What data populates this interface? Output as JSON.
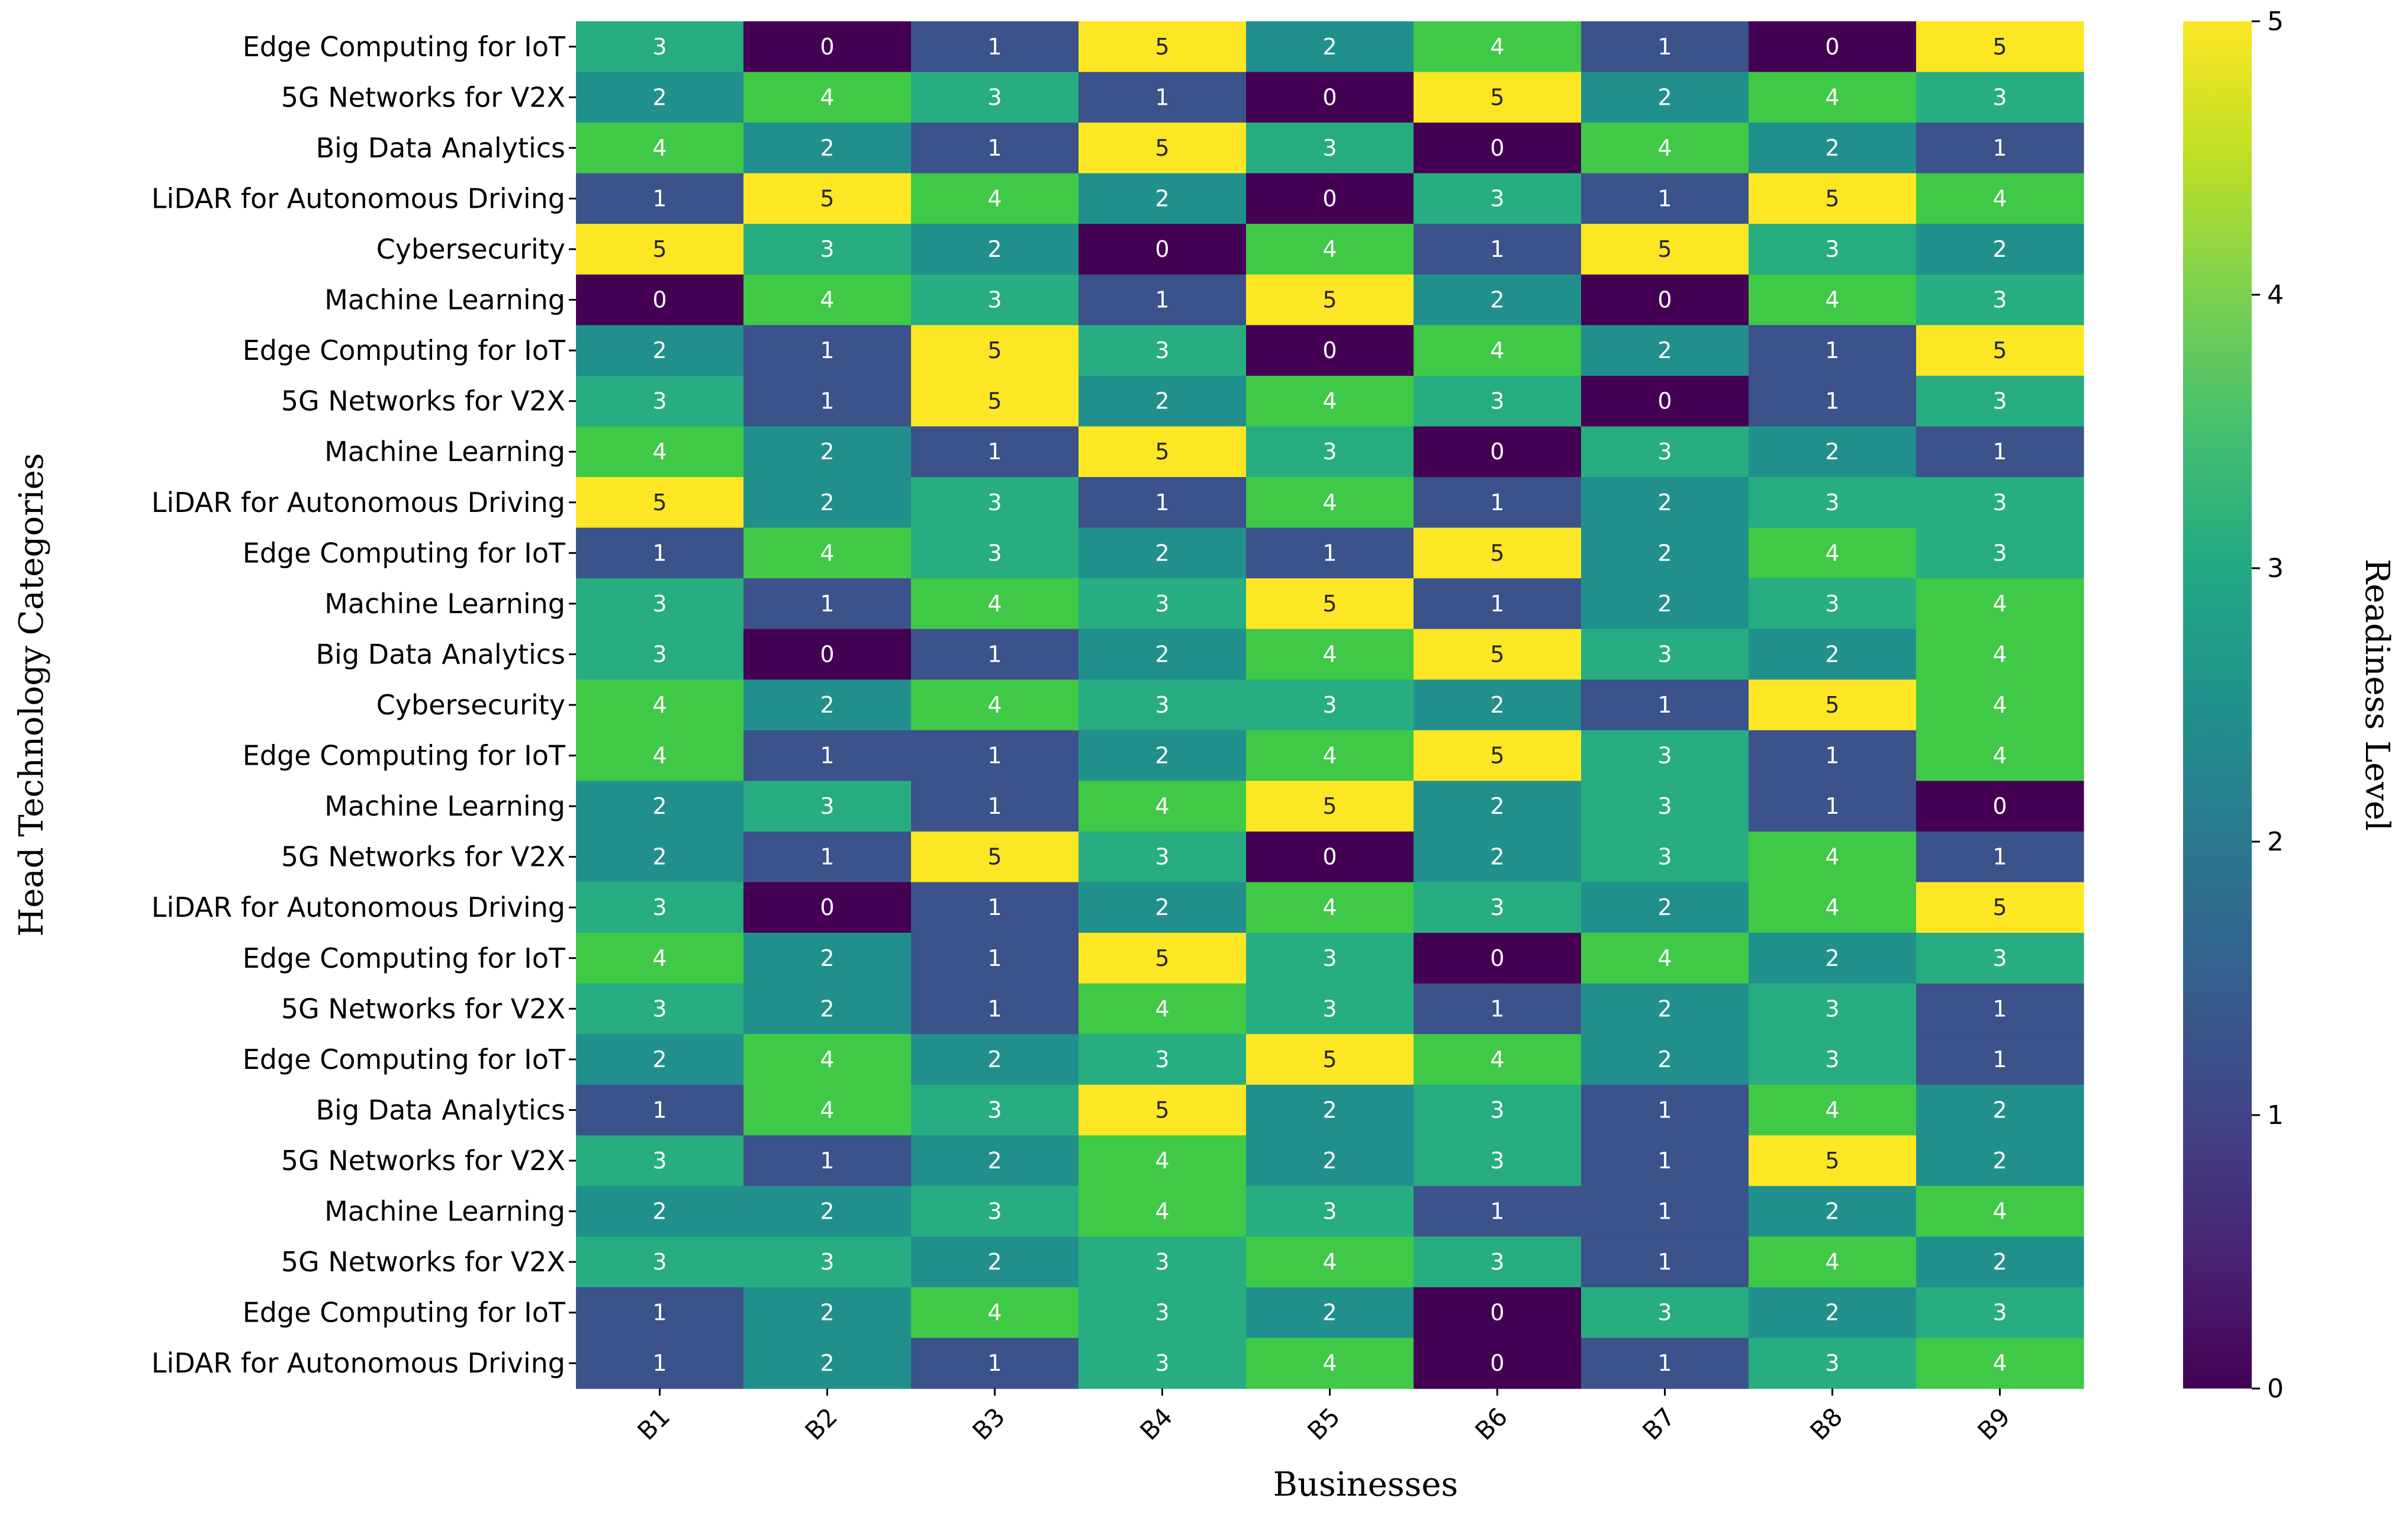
{
  "chart_data": {
    "type": "heatmap",
    "title": "",
    "xlabel": "Businesses",
    "ylabel": "Head Technology Categories",
    "colorbar_label": "Readiness Level",
    "colormap": "viridis",
    "value_range": [
      0,
      5
    ],
    "colorbar_ticks": [
      "0",
      "1",
      "2",
      "3",
      "4",
      "5"
    ],
    "columns": [
      "B1",
      "B2",
      "B3",
      "B4",
      "B5",
      "B6",
      "B7",
      "B8",
      "B9"
    ],
    "rows": [
      "Edge Computing for IoT",
      "5G Networks for V2X",
      "Big Data Analytics",
      "LiDAR for Autonomous Driving",
      "Cybersecurity",
      "Machine Learning",
      "Edge Computing for IoT",
      "5G Networks for V2X",
      "Machine Learning",
      "LiDAR for Autonomous Driving",
      "Edge Computing for IoT",
      "Machine Learning",
      "Big Data Analytics",
      "Cybersecurity",
      "Edge Computing for IoT",
      "Machine Learning",
      "5G Networks for V2X",
      "LiDAR for Autonomous Driving",
      "Edge Computing for IoT",
      "5G Networks for V2X",
      "Edge Computing for IoT",
      "Big Data Analytics",
      "5G Networks for V2X",
      "Machine Learning",
      "5G Networks for V2X",
      "Edge Computing for IoT",
      "LiDAR for Autonomous Driving"
    ],
    "values": [
      [
        3,
        0,
        1,
        5,
        2,
        4,
        1,
        0,
        5
      ],
      [
        2,
        4,
        3,
        1,
        0,
        5,
        2,
        4,
        3
      ],
      [
        4,
        2,
        1,
        5,
        3,
        0,
        4,
        2,
        1
      ],
      [
        1,
        5,
        4,
        2,
        0,
        3,
        1,
        5,
        4
      ],
      [
        5,
        3,
        2,
        0,
        4,
        1,
        5,
        3,
        2
      ],
      [
        0,
        4,
        3,
        1,
        5,
        2,
        0,
        4,
        3
      ],
      [
        2,
        1,
        5,
        3,
        0,
        4,
        2,
        1,
        5
      ],
      [
        3,
        1,
        5,
        2,
        4,
        3,
        0,
        1,
        3
      ],
      [
        4,
        2,
        1,
        5,
        3,
        0,
        3,
        2,
        1
      ],
      [
        5,
        2,
        3,
        1,
        4,
        1,
        2,
        3,
        3
      ],
      [
        1,
        4,
        3,
        2,
        1,
        5,
        2,
        4,
        3
      ],
      [
        3,
        1,
        4,
        3,
        5,
        1,
        2,
        3,
        4
      ],
      [
        3,
        0,
        1,
        2,
        4,
        5,
        3,
        2,
        4
      ],
      [
        4,
        2,
        4,
        3,
        3,
        2,
        1,
        5,
        4
      ],
      [
        4,
        1,
        1,
        2,
        4,
        5,
        3,
        1,
        4
      ],
      [
        2,
        3,
        1,
        4,
        5,
        2,
        3,
        1,
        0
      ],
      [
        2,
        1,
        5,
        3,
        0,
        2,
        3,
        4,
        1
      ],
      [
        3,
        0,
        1,
        2,
        4,
        3,
        2,
        4,
        5
      ],
      [
        4,
        2,
        1,
        5,
        3,
        0,
        4,
        2,
        3
      ],
      [
        3,
        2,
        1,
        4,
        3,
        1,
        2,
        3,
        1
      ],
      [
        2,
        4,
        2,
        3,
        5,
        4,
        2,
        3,
        1
      ],
      [
        1,
        4,
        3,
        5,
        2,
        3,
        1,
        4,
        2
      ],
      [
        3,
        1,
        2,
        4,
        2,
        3,
        1,
        5,
        2
      ],
      [
        2,
        2,
        3,
        4,
        3,
        1,
        1,
        2,
        4
      ],
      [
        3,
        3,
        2,
        3,
        4,
        3,
        1,
        4,
        2
      ],
      [
        1,
        2,
        4,
        3,
        2,
        0,
        3,
        2,
        3
      ],
      [
        1,
        2,
        1,
        3,
        4,
        0,
        1,
        3,
        4
      ]
    ],
    "level_colors": [
      "#440154",
      "#3b528b",
      "#21908d",
      "#27ad81",
      "#3fc947",
      "#fde725"
    ]
  }
}
